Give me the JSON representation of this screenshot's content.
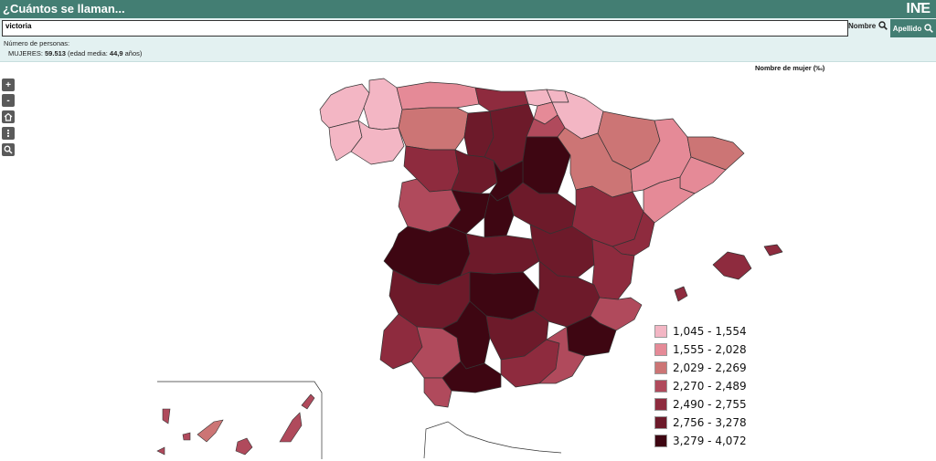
{
  "header": {
    "title": "¿Cuántos se llaman...",
    "logo_text": "INE"
  },
  "search": {
    "value": "victoria",
    "nombre_label": "Nombre",
    "apellido_label": "Apellido"
  },
  "info": {
    "label": "Número de personas:",
    "prefix": "MUJERES: ",
    "count": "59.513",
    "middle": " (edad media: ",
    "age": "44,9",
    "suffix": " años)"
  },
  "map": {
    "title": "Nombre de mujer (‰)",
    "controls": [
      "+",
      "-",
      "home",
      "more",
      "search"
    ]
  },
  "legend": [
    {
      "label": "1,045 - 1,554",
      "color": "#f3b6c4"
    },
    {
      "label": "1,555 - 2,028",
      "color": "#e58a97"
    },
    {
      "label": "2,029 - 2,269",
      "color": "#cc7575"
    },
    {
      "label": "2,270 - 2,489",
      "color": "#b04a5c"
    },
    {
      "label": "2,490 - 2,755",
      "color": "#8e2b3e"
    },
    {
      "label": "2,756 - 3,278",
      "color": "#6d1a2a"
    },
    {
      "label": "3,279 - 4,072",
      "color": "#3e0612"
    }
  ]
}
